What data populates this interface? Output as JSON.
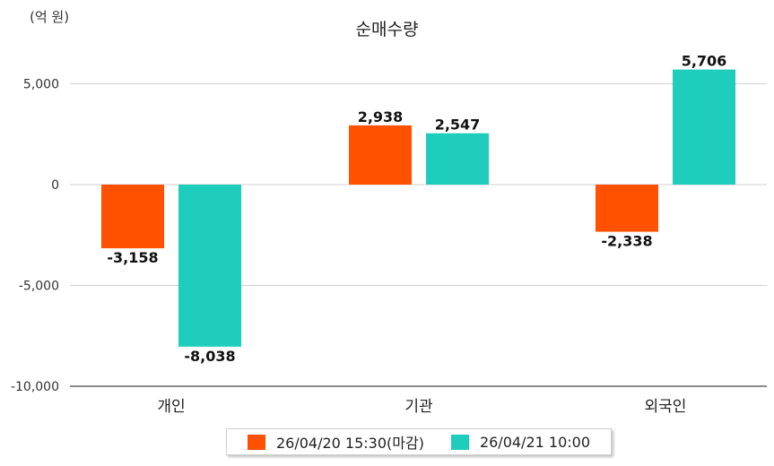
{
  "chart_data": {
    "type": "bar",
    "title": "순매수량",
    "unit_label": "(억 원)",
    "categories": [
      "개인",
      "기관",
      "외국인"
    ],
    "series": [
      {
        "name": "26/04/20 15:30(마감)",
        "color": "#FF5100",
        "values": [
          -3158,
          2938,
          -2338
        ],
        "labels": [
          "-3,158",
          "2,938",
          "-2,338"
        ]
      },
      {
        "name": "26/04/21 10:00",
        "color": "#1ECDBB",
        "values": [
          -8038,
          2547,
          5706
        ],
        "labels": [
          "-8,038",
          "2,547",
          "5,706"
        ]
      }
    ],
    "ylim": [
      -10000,
      7000
    ],
    "yticks": [
      5000,
      0,
      -5000,
      -10000
    ],
    "ytick_labels": [
      "5,000",
      "0",
      "-5,000",
      "-10,000"
    ],
    "grid": true,
    "legend_position": "bottom"
  }
}
